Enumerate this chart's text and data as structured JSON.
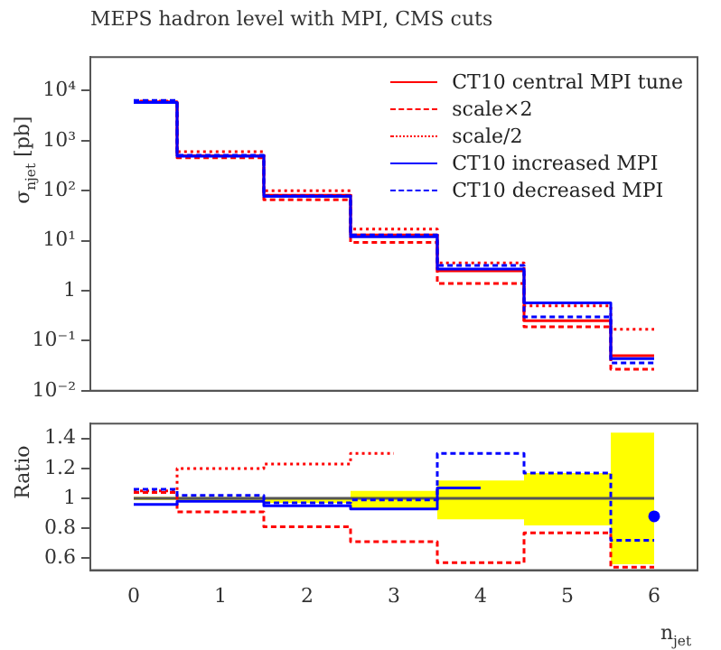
{
  "chart_data": [
    {
      "type": "step",
      "title": "MEPS hadron level with MPI, CMS cuts",
      "ylabel": "σ$_{njet}$ [pb]",
      "x": [
        0,
        1,
        2,
        3,
        4,
        5,
        6
      ],
      "series": [
        {
          "name": "CT10 central MPI tune",
          "color": "#ff0000",
          "line_style": "solid",
          "values": [
            6000,
            500,
            81,
            13,
            2.5,
            0.25,
            0.05
          ]
        },
        {
          "name": "scale×2",
          "color": "#ff0000",
          "line_style": "dashed",
          "values": [
            6200,
            455,
            66,
            9.2,
            1.4,
            0.19,
            0.027
          ]
        },
        {
          "name": "scale/2",
          "color": "#ff0000",
          "line_style": "dotted",
          "values": [
            6200,
            600,
            100,
            17,
            3.6,
            0.5,
            0.17
          ]
        },
        {
          "name": "CT10 increased MPI",
          "color": "#0000ff",
          "line_style": "solid",
          "values": [
            5800,
            490,
            77,
            12,
            2.7,
            0.57,
            0.044
          ]
        },
        {
          "name": "CT10 decreased MPI",
          "color": "#0000ff",
          "line_style": "dashed",
          "values": [
            6400,
            510,
            79,
            13,
            3.2,
            0.3,
            0.036
          ]
        }
      ],
      "log": "y",
      "xlim": [
        -0.5,
        6.5
      ],
      "xticks": [
        0,
        1,
        2,
        3,
        4,
        5,
        6
      ],
      "ylim": [
        0.01,
        47000
      ],
      "yticks": [
        {
          "value": 0.01,
          "label": "10⁻²"
        },
        {
          "value": 0.1,
          "label": "10⁻¹"
        },
        1,
        {
          "value": 10,
          "label": "10¹"
        },
        {
          "value": 100,
          "label": "10²"
        },
        {
          "value": 1000,
          "label": "10³"
        },
        {
          "value": 10000,
          "label": "10⁴"
        }
      ],
      "tick_labels": "y",
      "grid": false,
      "legend": "top right"
    },
    {
      "type": "step",
      "xlabel": "n$_{jet}$",
      "ylabel": "Ratio",
      "x": [
        0,
        1,
        2,
        3,
        4,
        5,
        6
      ],
      "series": [
        {
          "color": "#555555",
          "line_style": "solid",
          "values": [
            1,
            1,
            1,
            1,
            1,
            1,
            1
          ],
          "lower": [
            0.99,
            0.98,
            0.97,
            0.93,
            0.86,
            0.82,
            0.56
          ],
          "upper": [
            1.01,
            1.01,
            1.0,
            1.05,
            1.12,
            1.17,
            1.44
          ]
        },
        {
          "color": "#ff0000",
          "line_style": "dashed",
          "values": [
            1.04,
            0.91,
            0.81,
            0.71,
            0.57,
            0.77,
            0.54
          ]
        },
        {
          "color": "#ff0000",
          "line_style": "dotted",
          "values": [
            1.05,
            1.2,
            1.23,
            1.3,
            null,
            null,
            null
          ]
        },
        {
          "color": "#0000ff",
          "line_style": "solid",
          "values": [
            0.96,
            0.98,
            0.95,
            0.93,
            1.07,
            null,
            0.88
          ]
        },
        {
          "color": "#0000ff",
          "line_style": "dashed",
          "values": [
            1.06,
            1.02,
            0.97,
            0.99,
            1.3,
            1.17,
            0.72
          ]
        }
      ],
      "xlim": [
        -0.5,
        6.5
      ],
      "xticks": [
        0,
        1,
        2,
        3,
        4,
        5,
        6
      ],
      "ylim": [
        0.52,
        1.5
      ],
      "yticks": [
        0.6,
        0.8,
        1,
        1.2,
        1.4
      ],
      "grid": false,
      "legend": false
    }
  ]
}
